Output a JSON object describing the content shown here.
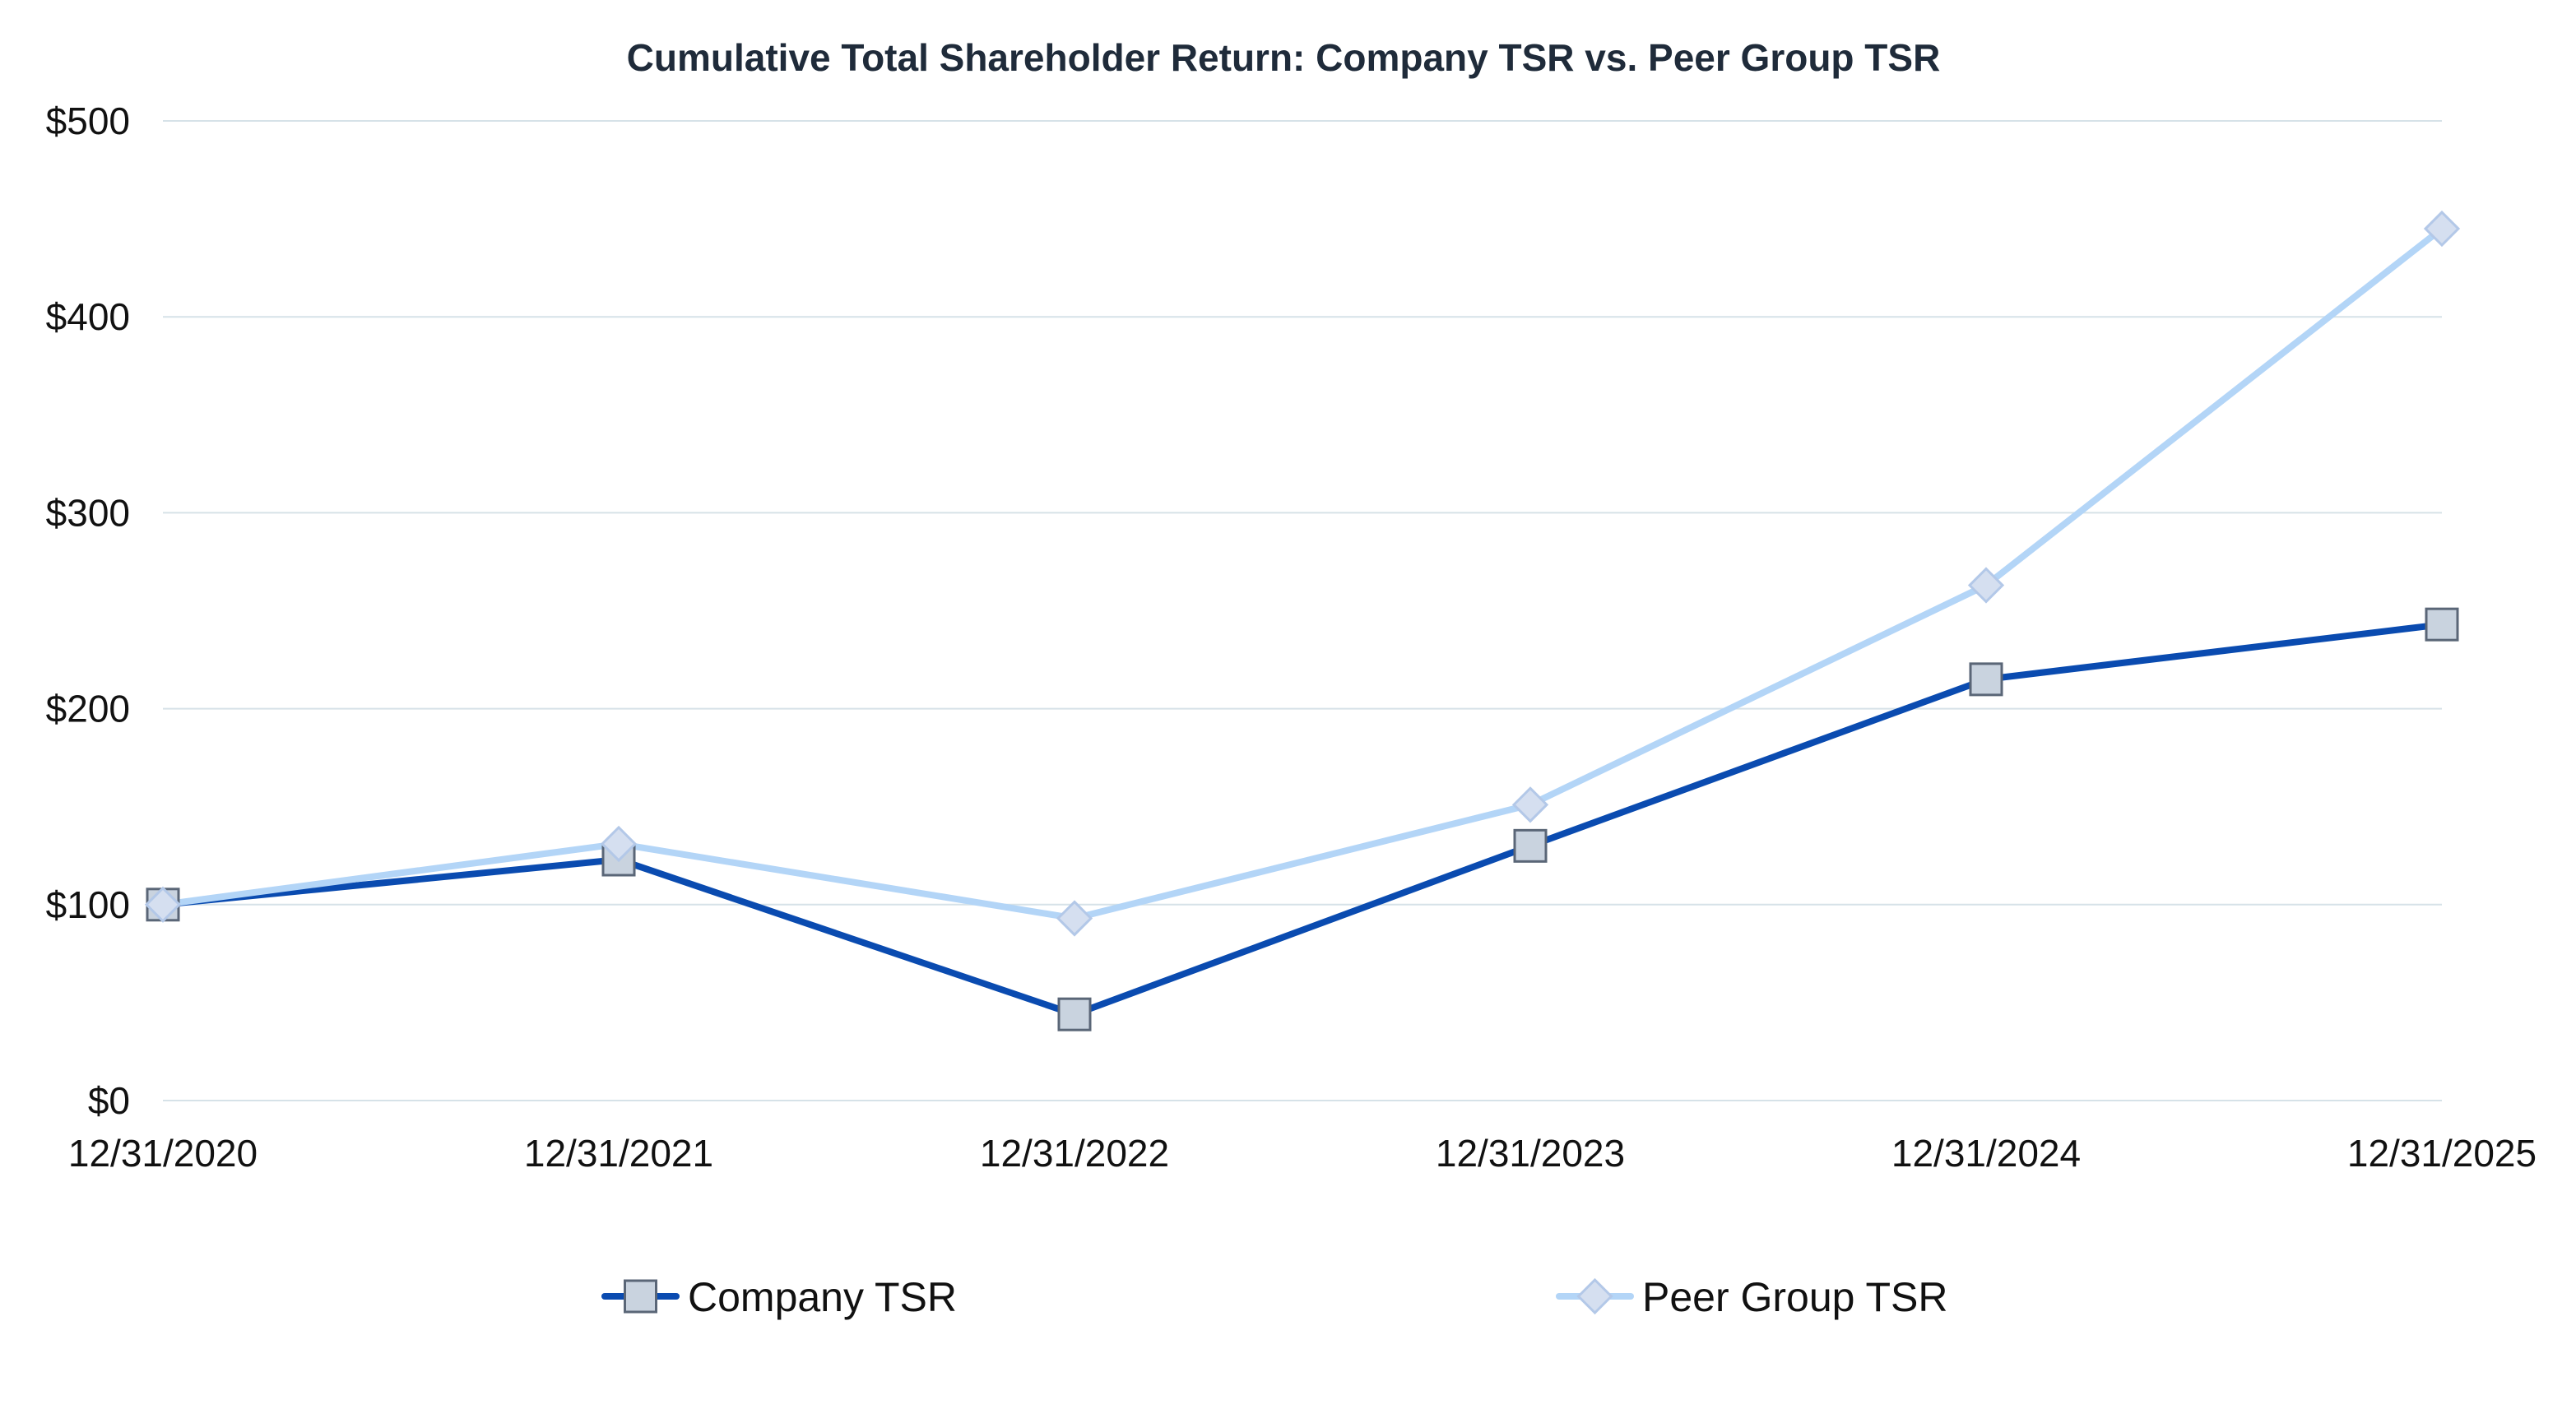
{
  "chart_data": {
    "type": "line",
    "title": "Cumulative Total Shareholder Return: Company TSR vs. Peer Group TSR",
    "xlabel": "",
    "ylabel": "",
    "categories": [
      "12/31/2020",
      "12/31/2021",
      "12/31/2022",
      "12/31/2023",
      "12/31/2024",
      "12/31/2025"
    ],
    "ylim": [
      0,
      500
    ],
    "yticks": [
      0,
      100,
      200,
      300,
      400,
      500
    ],
    "ytick_labels": [
      "$0",
      "$100",
      "$200",
      "$300",
      "$400",
      "$500"
    ],
    "grid": true,
    "legend_position": "bottom",
    "series": [
      {
        "name": "Company TSR",
        "values": [
          100,
          123,
          44,
          130,
          215,
          243
        ],
        "color": "#0a4bb0",
        "marker": "square",
        "marker_fill": "#c9d3df",
        "marker_stroke": "#5a6677"
      },
      {
        "name": "Peer Group TSR",
        "values": [
          100,
          131,
          93,
          151,
          263,
          445
        ],
        "color": "#b3d5f7",
        "marker": "diamond",
        "marker_fill": "#d5dff0",
        "marker_stroke": "#b3c8e8"
      }
    ]
  }
}
